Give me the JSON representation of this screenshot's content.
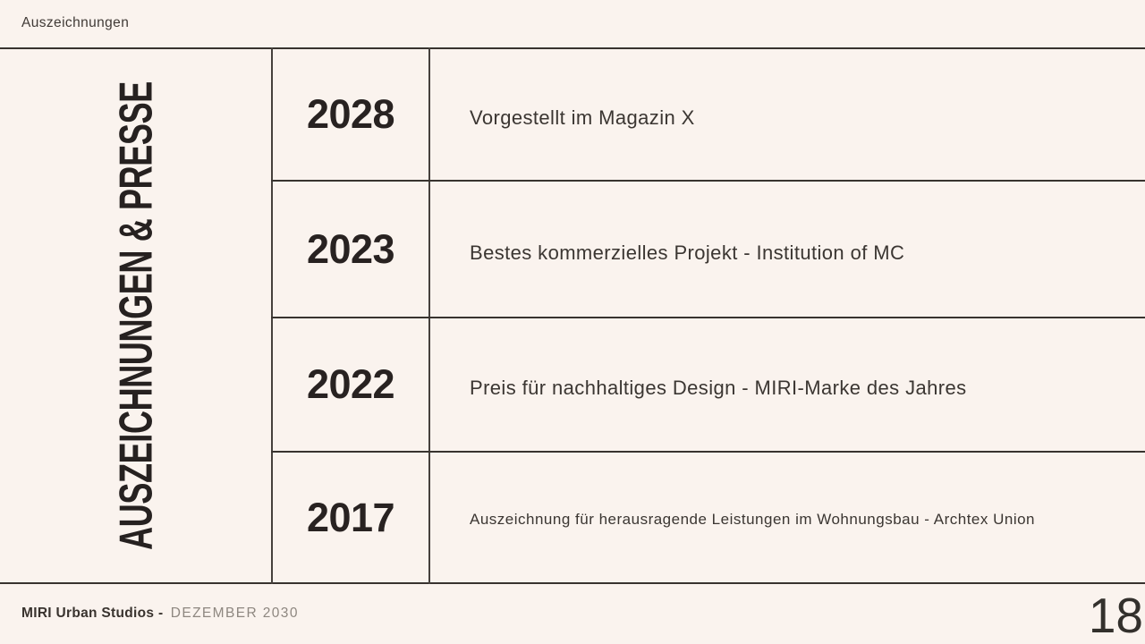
{
  "header": {
    "label": "Auszeichnungen"
  },
  "sidebar": {
    "vertical_title": "AUSZEICHNUNGEN & PRESSE"
  },
  "awards": {
    "rows": [
      {
        "year": "2028",
        "description": "Vorgestellt im Magazin X"
      },
      {
        "year": "2023",
        "description": "Bestes kommerzielles Projekt - Institution of MC"
      },
      {
        "year": "2022",
        "description": "Preis für nachhaltiges Design - MIRI-Marke des Jahres"
      },
      {
        "year": "2017",
        "description": "Auszeichnung für herausragende Leistungen im Wohnungsbau - Archtex Union"
      }
    ]
  },
  "footer": {
    "brand": "MIRI Urban Studios -",
    "date": "DEZEMBER 2030",
    "page_number": "18"
  },
  "colors": {
    "background": "#faf3ee",
    "line": "#38332f",
    "heading_text": "#262120",
    "body_text": "#3b3632",
    "muted_text": "#8e8780"
  }
}
